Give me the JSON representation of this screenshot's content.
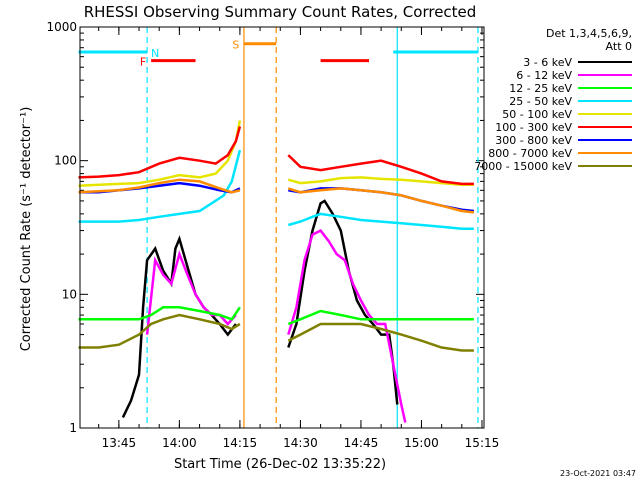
{
  "chart_data": {
    "type": "line",
    "title": "RHESSI Observing Summary Count Rates, Corrected",
    "xlabel": "Start Time (26-Dec-02 13:35:22)",
    "ylabel": "Corrected Count Rate (s⁻¹ detector⁻¹)",
    "y_scale": "log",
    "ylim": [
      1,
      1000
    ],
    "xlim": [
      "13:35:22",
      "15:15:30"
    ],
    "x_ticks": [
      "13:45",
      "14:00",
      "14:15",
      "14:30",
      "14:45",
      "15:00",
      "15:15"
    ],
    "y_ticks": [
      "1",
      "10",
      "100",
      "1000"
    ],
    "legend_header": [
      "Det 1,3,4,5,6,9,",
      "Att 0"
    ],
    "legend_position": "right",
    "footer_date": "23-Oct-2021 03:47",
    "flag_labels": [
      "N",
      "F",
      "S"
    ],
    "flags": [
      {
        "label": "N",
        "color": "#00e5ff",
        "start": "13:35",
        "end": "13:52",
        "level": 650
      },
      {
        "label": "N",
        "color": "#00e5ff",
        "start": "14:53",
        "end": "15:14",
        "level": 650
      },
      {
        "label": "F",
        "color": "#ff0000",
        "start": "13:53",
        "end": "14:04",
        "level": 560
      },
      {
        "label": "F",
        "color": "#ff0000",
        "start": "14:35",
        "end": "14:47",
        "level": 560
      },
      {
        "label": "S",
        "color": "#ff8c00",
        "start": "14:16",
        "end": "14:24",
        "level": 750
      }
    ],
    "vlines": [
      {
        "t": "13:52",
        "color": "#00e5ff",
        "style": "dashed"
      },
      {
        "t": "14:16",
        "color": "#ff8c00",
        "style": "solid"
      },
      {
        "t": "14:24",
        "color": "#ff8c00",
        "style": "dashed"
      },
      {
        "t": "14:54",
        "color": "#00e5ff",
        "style": "solid"
      },
      {
        "t": "15:14",
        "color": "#00e5ff",
        "style": "dashed"
      }
    ],
    "series": [
      {
        "name": "3 - 6 keV",
        "color": "#000000",
        "segments": [
          [
            [
              "13:46",
              1.2
            ],
            [
              "13:48",
              1.6
            ],
            [
              "13:50",
              2.5
            ],
            [
              "13:51",
              8
            ],
            [
              "13:52",
              18
            ],
            [
              "13:54",
              22
            ],
            [
              "13:56",
              15
            ],
            [
              "13:58",
              12
            ],
            [
              "13:59",
              22
            ],
            [
              "14:00",
              26
            ],
            [
              "14:02",
              16
            ],
            [
              "14:04",
              10
            ],
            [
              "14:06",
              8
            ],
            [
              "14:08",
              7
            ],
            [
              "14:10",
              6
            ],
            [
              "14:12",
              5
            ],
            [
              "14:14",
              6
            ]
          ],
          [
            [
              "14:27",
              4
            ],
            [
              "14:29",
              6
            ],
            [
              "14:31",
              15
            ],
            [
              "14:33",
              30
            ],
            [
              "14:35",
              48
            ],
            [
              "14:36",
              50
            ],
            [
              "14:38",
              40
            ],
            [
              "14:40",
              30
            ],
            [
              "14:42",
              15
            ],
            [
              "14:44",
              9
            ],
            [
              "14:46",
              7
            ],
            [
              "14:48",
              6
            ],
            [
              "14:50",
              5
            ],
            [
              "14:52",
              5
            ],
            [
              "14:53",
              3
            ],
            [
              "14:54",
              1.5
            ]
          ]
        ]
      },
      {
        "name": "6 - 12 keV",
        "color": "#ff00ff",
        "segments": [
          [
            [
              "13:52",
              5
            ],
            [
              "13:54",
              18
            ],
            [
              "13:56",
              14
            ],
            [
              "13:58",
              12
            ],
            [
              "14:00",
              20
            ],
            [
              "14:02",
              14
            ],
            [
              "14:04",
              10
            ],
            [
              "14:06",
              8
            ],
            [
              "14:08",
              7
            ],
            [
              "14:10",
              7
            ],
            [
              "14:12",
              6
            ],
            [
              "14:14",
              7
            ]
          ],
          [
            [
              "14:27",
              5
            ],
            [
              "14:29",
              8
            ],
            [
              "14:31",
              18
            ],
            [
              "14:33",
              28
            ],
            [
              "14:35",
              30
            ],
            [
              "14:37",
              25
            ],
            [
              "14:39",
              20
            ],
            [
              "14:41",
              18
            ],
            [
              "14:43",
              12
            ],
            [
              "14:45",
              9
            ],
            [
              "14:47",
              7
            ],
            [
              "14:49",
              6
            ],
            [
              "14:51",
              6
            ],
            [
              "14:53",
              3
            ],
            [
              "14:55",
              1.5
            ],
            [
              "14:56",
              1.1
            ]
          ]
        ]
      },
      {
        "name": "12 - 25 keV",
        "color": "#00ff00",
        "segments": [
          [
            [
              "13:35",
              6.5
            ],
            [
              "13:40",
              6.5
            ],
            [
              "13:45",
              6.5
            ],
            [
              "13:50",
              6.5
            ],
            [
              "13:53",
              7
            ],
            [
              "13:56",
              8
            ],
            [
              "14:00",
              8
            ],
            [
              "14:05",
              7.5
            ],
            [
              "14:10",
              7
            ],
            [
              "14:13",
              6.5
            ],
            [
              "14:15",
              8
            ]
          ],
          [
            [
              "14:27",
              6
            ],
            [
              "14:30",
              6.5
            ],
            [
              "14:35",
              7.5
            ],
            [
              "14:40",
              7
            ],
            [
              "14:45",
              6.5
            ],
            [
              "14:50",
              6.5
            ],
            [
              "14:55",
              6.5
            ],
            [
              "15:00",
              6.5
            ],
            [
              "15:05",
              6.5
            ],
            [
              "15:10",
              6.5
            ],
            [
              "15:13",
              6.5
            ]
          ]
        ]
      },
      {
        "name": "25 - 50 keV",
        "color": "#00e5ff",
        "segments": [
          [
            [
              "13:35",
              35
            ],
            [
              "13:40",
              35
            ],
            [
              "13:45",
              35
            ],
            [
              "13:50",
              36
            ],
            [
              "13:55",
              38
            ],
            [
              "14:00",
              40
            ],
            [
              "14:05",
              42
            ],
            [
              "14:08",
              48
            ],
            [
              "14:11",
              55
            ],
            [
              "14:13",
              70
            ],
            [
              "14:15",
              120
            ]
          ],
          [
            [
              "14:27",
              33
            ],
            [
              "14:30",
              35
            ],
            [
              "14:33",
              38
            ],
            [
              "14:35",
              40
            ],
            [
              "14:40",
              38
            ],
            [
              "14:45",
              36
            ],
            [
              "14:50",
              35
            ],
            [
              "14:55",
              34
            ],
            [
              "15:00",
              33
            ],
            [
              "15:05",
              32
            ],
            [
              "15:10",
              31
            ],
            [
              "15:13",
              31
            ]
          ]
        ]
      },
      {
        "name": "50 - 100 keV",
        "color": "#e5e500",
        "segments": [
          [
            [
              "13:35",
              65
            ],
            [
              "13:40",
              66
            ],
            [
              "13:45",
              67
            ],
            [
              "13:50",
              68
            ],
            [
              "13:55",
              72
            ],
            [
              "14:00",
              78
            ],
            [
              "14:05",
              75
            ],
            [
              "14:09",
              80
            ],
            [
              "14:12",
              100
            ],
            [
              "14:14",
              140
            ],
            [
              "14:15",
              200
            ]
          ],
          [
            [
              "14:27",
              72
            ],
            [
              "14:30",
              68
            ],
            [
              "14:35",
              70
            ],
            [
              "14:40",
              74
            ],
            [
              "14:45",
              75
            ],
            [
              "14:50",
              73
            ],
            [
              "14:55",
              72
            ],
            [
              "15:00",
              70
            ],
            [
              "15:05",
              68
            ],
            [
              "15:10",
              66
            ],
            [
              "15:13",
              66
            ]
          ]
        ]
      },
      {
        "name": "100 - 300 keV",
        "color": "#ff0000",
        "segments": [
          [
            [
              "13:35",
              75
            ],
            [
              "13:40",
              76
            ],
            [
              "13:45",
              78
            ],
            [
              "13:50",
              82
            ],
            [
              "13:55",
              95
            ],
            [
              "14:00",
              105
            ],
            [
              "14:05",
              100
            ],
            [
              "14:09",
              95
            ],
            [
              "14:12",
              110
            ],
            [
              "14:14",
              140
            ],
            [
              "14:15",
              180
            ]
          ],
          [
            [
              "14:27",
              110
            ],
            [
              "14:30",
              90
            ],
            [
              "14:35",
              85
            ],
            [
              "14:40",
              90
            ],
            [
              "14:45",
              95
            ],
            [
              "14:50",
              100
            ],
            [
              "14:55",
              90
            ],
            [
              "15:00",
              80
            ],
            [
              "15:05",
              70
            ],
            [
              "15:10",
              67
            ],
            [
              "15:13",
              67
            ]
          ]
        ]
      },
      {
        "name": "300 - 800 keV",
        "color": "#0000ff",
        "segments": [
          [
            [
              "13:35",
              58
            ],
            [
              "13:40",
              58
            ],
            [
              "13:45",
              60
            ],
            [
              "13:50",
              62
            ],
            [
              "13:55",
              65
            ],
            [
              "14:00",
              68
            ],
            [
              "14:05",
              65
            ],
            [
              "14:10",
              60
            ],
            [
              "14:13",
              58
            ],
            [
              "14:15",
              62
            ]
          ],
          [
            [
              "14:27",
              60
            ],
            [
              "14:30",
              58
            ],
            [
              "14:35",
              62
            ],
            [
              "14:40",
              62
            ],
            [
              "14:45",
              60
            ],
            [
              "14:50",
              58
            ],
            [
              "14:55",
              55
            ],
            [
              "15:00",
              50
            ],
            [
              "15:05",
              46
            ],
            [
              "15:10",
              43
            ],
            [
              "15:13",
              42
            ]
          ]
        ]
      },
      {
        "name": "800 - 7000 keV",
        "color": "#ff8c00",
        "segments": [
          [
            [
              "13:35",
              58
            ],
            [
              "13:40",
              59
            ],
            [
              "13:45",
              60
            ],
            [
              "13:50",
              63
            ],
            [
              "13:55",
              68
            ],
            [
              "14:00",
              72
            ],
            [
              "14:05",
              70
            ],
            [
              "14:10",
              62
            ],
            [
              "14:13",
              58
            ],
            [
              "14:15",
              60
            ]
          ],
          [
            [
              "14:27",
              62
            ],
            [
              "14:30",
              58
            ],
            [
              "14:35",
              60
            ],
            [
              "14:40",
              62
            ],
            [
              "14:45",
              60
            ],
            [
              "14:50",
              58
            ],
            [
              "14:55",
              55
            ],
            [
              "15:00",
              50
            ],
            [
              "15:05",
              46
            ],
            [
              "15:10",
              42
            ],
            [
              "15:13",
              41
            ]
          ]
        ]
      },
      {
        "name": "7000 - 15000 keV",
        "color": "#808000",
        "segments": [
          [
            [
              "13:35",
              4
            ],
            [
              "13:40",
              4
            ],
            [
              "13:45",
              4.2
            ],
            [
              "13:50",
              5
            ],
            [
              "13:53",
              6
            ],
            [
              "13:56",
              6.5
            ],
            [
              "14:00",
              7
            ],
            [
              "14:05",
              6.5
            ],
            [
              "14:10",
              6
            ],
            [
              "14:13",
              5.5
            ],
            [
              "14:15",
              6
            ]
          ],
          [
            [
              "14:27",
              4.5
            ],
            [
              "14:30",
              5
            ],
            [
              "14:35",
              6
            ],
            [
              "14:40",
              6
            ],
            [
              "14:45",
              6
            ],
            [
              "14:50",
              5.5
            ],
            [
              "14:55",
              5
            ],
            [
              "15:00",
              4.5
            ],
            [
              "15:05",
              4
            ],
            [
              "15:10",
              3.8
            ],
            [
              "15:13",
              3.8
            ]
          ]
        ]
      }
    ]
  }
}
